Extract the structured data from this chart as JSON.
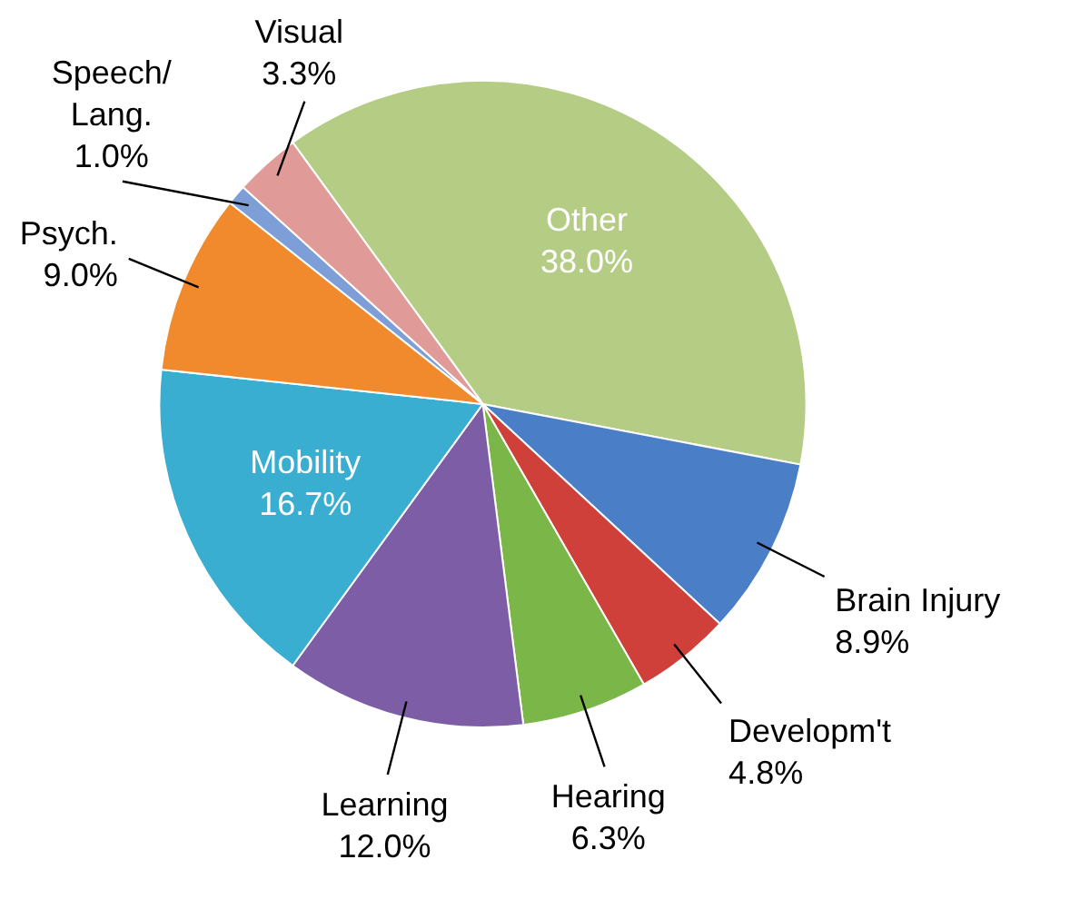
{
  "chart_data": {
    "type": "pie",
    "categories": [
      "Other",
      "Brain Injury",
      "Developm't",
      "Hearing",
      "Learning",
      "Mobility",
      "Psych.",
      "Speech/\nLang.",
      "Visual"
    ],
    "values": [
      38.0,
      8.9,
      4.8,
      6.3,
      12.0,
      16.7,
      9.0,
      1.0,
      3.3
    ],
    "colors": [
      "#b5cc85",
      "#4a7fc8",
      "#d0403b",
      "#7ab648",
      "#7d5ea6",
      "#3aaed0",
      "#f08a2c",
      "#7e9ed8",
      "#e09a98"
    ],
    "value_labels": [
      "38.0%",
      "8.9%",
      "4.8%",
      "6.3%",
      "12.0%",
      "16.7%",
      "9.0%",
      "1.0%",
      "3.3%"
    ]
  }
}
